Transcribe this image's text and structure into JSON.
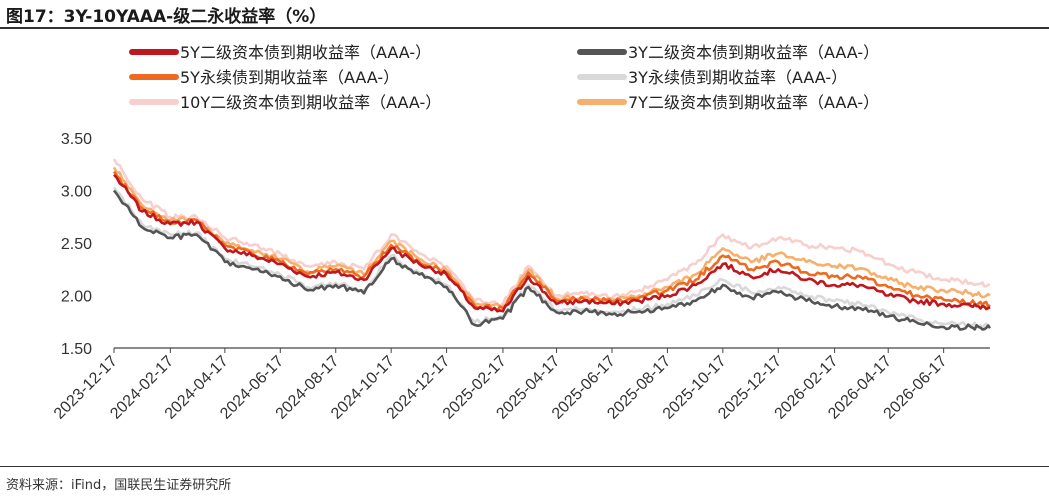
{
  "title": "图17：3Y-10YAAA-级二永收益率（%）",
  "source": "资料来源：iFind，国联民生证券研究所",
  "chart_data": {
    "type": "line",
    "title": "图17：3Y-10YAAA-级二永收益率（%）",
    "xlabel": "",
    "ylabel": "",
    "ylim": [
      1.5,
      3.5
    ],
    "yticks": [
      "1.50",
      "2.00",
      "2.50",
      "3.00",
      "3.50"
    ],
    "xticks": [
      "2023-12-17",
      "2024-02-17",
      "2024-04-17",
      "2024-06-17",
      "2024-08-17",
      "2024-10-17",
      "2024-12-17",
      "2025-02-17",
      "2025-04-17",
      "2025-06-17",
      "2025-08-17",
      "2025-10-17",
      "2025-12-17",
      "2026-02-17",
      "2026-04-17",
      "2026-06-17"
    ],
    "legend_position": "top",
    "grid": false,
    "x": [
      "2023-12-17",
      "2024-01-17",
      "2024-02-17",
      "2024-03-17",
      "2024-04-17",
      "2024-05-17",
      "2024-06-17",
      "2024-07-17",
      "2024-08-17",
      "2024-09-17",
      "2024-10-17",
      "2024-11-17",
      "2024-12-17",
      "2025-01-17",
      "2025-02-17",
      "2025-03-17",
      "2025-04-17",
      "2025-05-17",
      "2025-06-17",
      "2025-07-17",
      "2025-08-17",
      "2025-09-17",
      "2025-10-17",
      "2025-11-17",
      "2025-12-17",
      "2026-01-17",
      "2026-02-17",
      "2026-03-17",
      "2026-04-17",
      "2026-05-17",
      "2026-06-17",
      "2026-07-17",
      "2026-08-07"
    ],
    "series": [
      {
        "name": "5Y二级资本债到期收益率（AAA-）",
        "color": "#c0161d",
        "width": 4,
        "values": [
          3.15,
          2.8,
          2.68,
          2.7,
          2.45,
          2.38,
          2.3,
          2.18,
          2.22,
          2.15,
          2.45,
          2.3,
          2.2,
          1.88,
          1.85,
          2.18,
          1.92,
          1.95,
          1.92,
          1.95,
          2.0,
          2.1,
          2.3,
          2.18,
          2.25,
          2.15,
          2.1,
          2.1,
          2.0,
          1.95,
          1.92,
          1.9,
          1.89
        ]
      },
      {
        "name": "3Y二级资本债到期收益率（AAA-）",
        "color": "#555555",
        "width": 4,
        "values": [
          3.0,
          2.65,
          2.55,
          2.58,
          2.32,
          2.25,
          2.18,
          2.05,
          2.1,
          2.02,
          2.35,
          2.2,
          2.08,
          1.72,
          1.78,
          2.08,
          1.84,
          1.85,
          1.82,
          1.85,
          1.88,
          1.95,
          2.1,
          1.98,
          2.03,
          1.95,
          1.9,
          1.88,
          1.8,
          1.75,
          1.7,
          1.7,
          1.69
        ]
      },
      {
        "name": "5Y永续债到期收益率（AAA-）",
        "color": "#ee6a22",
        "width": 4,
        "values": [
          3.18,
          2.83,
          2.7,
          2.72,
          2.48,
          2.4,
          2.32,
          2.2,
          2.25,
          2.18,
          2.48,
          2.32,
          2.22,
          1.9,
          1.88,
          2.22,
          1.95,
          1.97,
          1.94,
          1.98,
          2.05,
          2.15,
          2.38,
          2.25,
          2.32,
          2.22,
          2.18,
          2.18,
          2.08,
          2.0,
          1.96,
          1.93,
          1.91
        ]
      },
      {
        "name": "3Y永续债到期收益率（AAA-）",
        "color": "#d9d9d9",
        "width": 4,
        "values": [
          3.03,
          2.68,
          2.58,
          2.6,
          2.35,
          2.28,
          2.2,
          2.08,
          2.12,
          2.05,
          2.38,
          2.22,
          2.1,
          1.75,
          1.8,
          2.1,
          1.86,
          1.87,
          1.84,
          1.87,
          1.92,
          2.0,
          2.15,
          2.03,
          2.08,
          2.0,
          1.95,
          1.93,
          1.84,
          1.78,
          1.73,
          1.72,
          1.71
        ]
      },
      {
        "name": "10Y二级资本债到期收益率（AAA-）",
        "color": "#f8cfcf",
        "width": 4,
        "values": [
          3.3,
          2.92,
          2.75,
          2.75,
          2.55,
          2.48,
          2.4,
          2.28,
          2.32,
          2.25,
          2.58,
          2.4,
          2.28,
          1.95,
          1.92,
          2.28,
          2.0,
          2.02,
          1.98,
          2.05,
          2.15,
          2.3,
          2.58,
          2.45,
          2.55,
          2.48,
          2.45,
          2.42,
          2.3,
          2.22,
          2.15,
          2.12,
          2.1
        ]
      },
      {
        "name": "7Y二级资本债到期收益率（AAA-）",
        "color": "#f6b06b",
        "width": 4,
        "values": [
          3.22,
          2.86,
          2.72,
          2.72,
          2.5,
          2.43,
          2.35,
          2.23,
          2.28,
          2.2,
          2.52,
          2.35,
          2.24,
          1.92,
          1.9,
          2.25,
          1.97,
          1.99,
          1.96,
          2.0,
          2.08,
          2.2,
          2.45,
          2.32,
          2.4,
          2.32,
          2.28,
          2.26,
          2.15,
          2.08,
          2.05,
          2.02,
          2.0
        ]
      }
    ]
  }
}
